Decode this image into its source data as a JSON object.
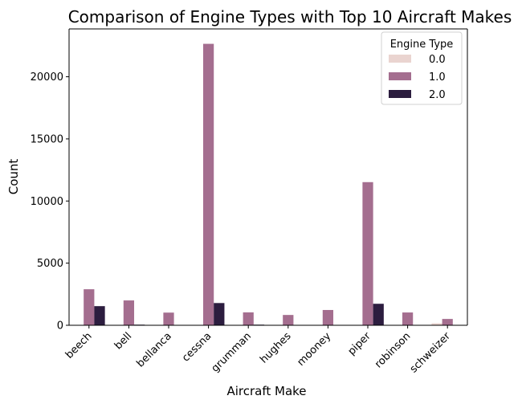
{
  "chart_data": {
    "type": "bar",
    "title": "Comparison of Engine Types with Top 10 Aircraft Makes",
    "xlabel": "Aircraft Make",
    "ylabel": "Count",
    "categories": [
      "beech",
      "bell",
      "bellanca",
      "cessna",
      "grumman",
      "hughes",
      "mooney",
      "piper",
      "robinson",
      "schweizer"
    ],
    "series": [
      {
        "name": "0.0",
        "color": "#ead4d0",
        "values": [
          0,
          0,
          0,
          0,
          0,
          0,
          0,
          30,
          0,
          160
        ]
      },
      {
        "name": "1.0",
        "color": "#a46e8f",
        "values": [
          2900,
          2000,
          1020,
          22650,
          1040,
          830,
          1230,
          11520,
          1030,
          510
        ]
      },
      {
        "name": "2.0",
        "color": "#2c1d3f",
        "values": [
          1540,
          50,
          0,
          1790,
          50,
          0,
          0,
          1730,
          0,
          0
        ]
      }
    ],
    "ylim": [
      0,
      23850
    ],
    "yticks": [
      0,
      5000,
      10000,
      15000,
      20000
    ],
    "ytick_labels": [
      "0",
      "5000",
      "10000",
      "15000",
      "20000"
    ],
    "legend": {
      "title": "Engine Type",
      "position": "top-right"
    },
    "grid": false
  }
}
